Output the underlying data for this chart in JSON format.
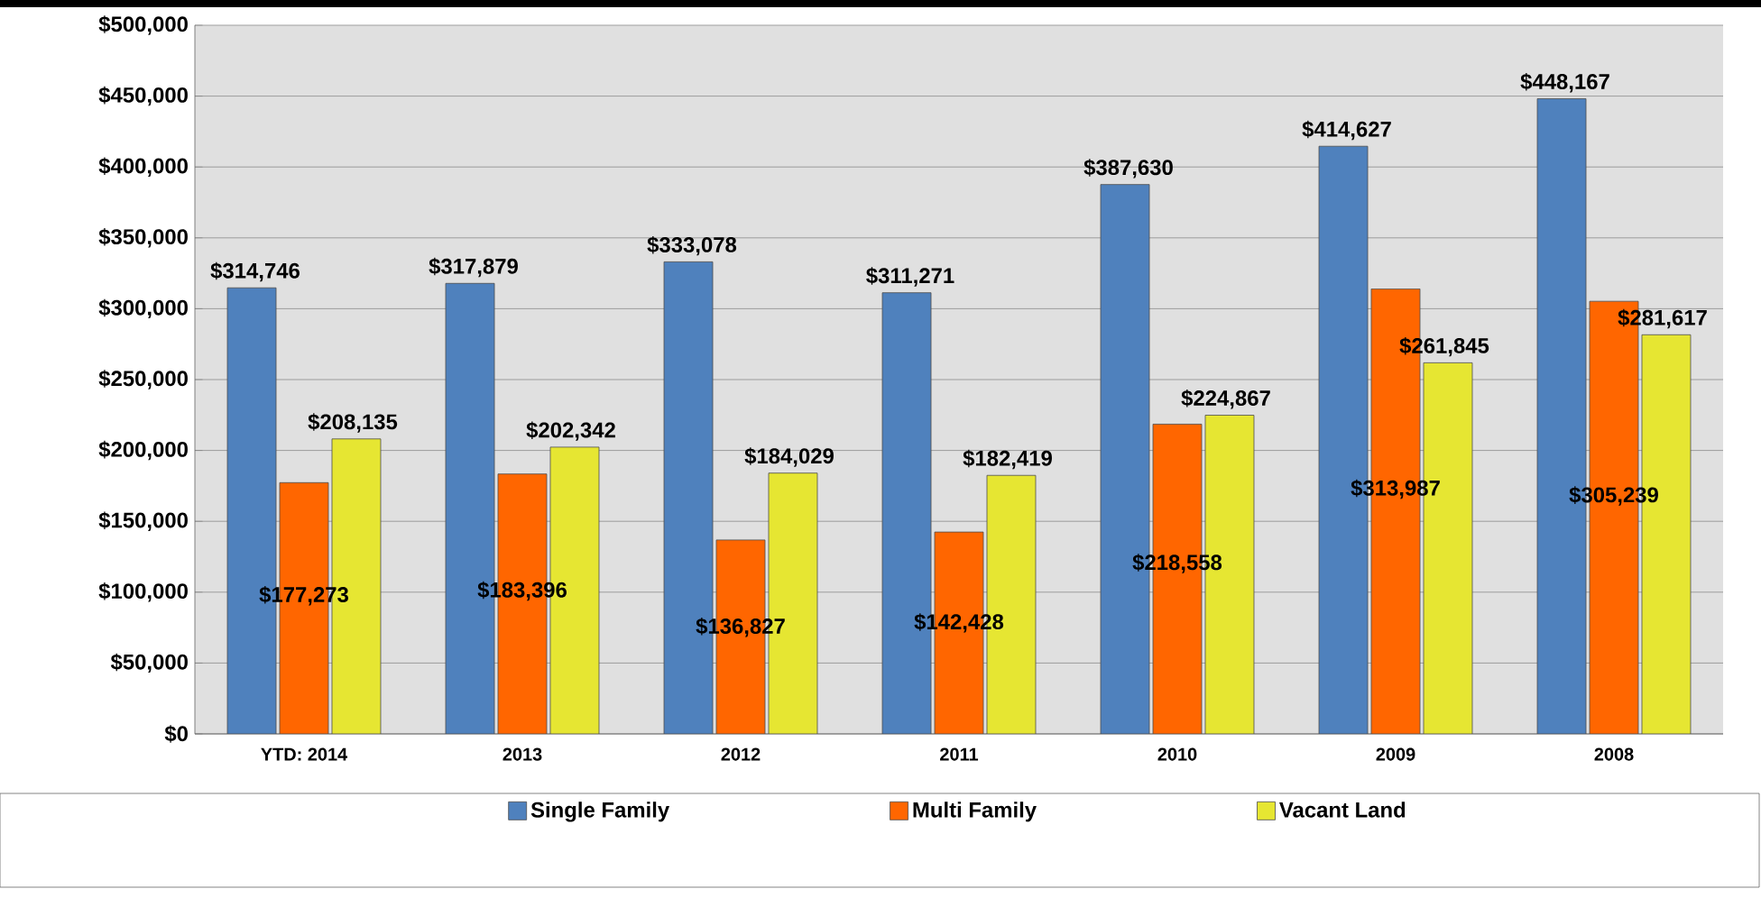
{
  "chart_data": {
    "type": "bar",
    "categories": [
      "YTD: 2014",
      "2013",
      "2012",
      "2011",
      "2010",
      "2009",
      "2008"
    ],
    "series": [
      {
        "name": "Single Family",
        "color": "#4f81bd",
        "values": [
          314746,
          317879,
          333078,
          311271,
          387630,
          414627,
          448167
        ],
        "value_labels": [
          "$314,746",
          "$317,879",
          "$333,078",
          "$311,271",
          "$387,630",
          "$414,627",
          "$448,167"
        ]
      },
      {
        "name": "Multi Family",
        "color": "#ff6600",
        "values": [
          177273,
          183396,
          136827,
          142428,
          218558,
          313987,
          305239
        ],
        "value_labels": [
          "$177,273",
          "$183,396",
          "$136,827",
          "$142,428",
          "$218,558",
          "$313,987",
          "$305,239"
        ]
      },
      {
        "name": "Vacant Land",
        "color": "#e6e632",
        "values": [
          208135,
          202342,
          184029,
          182419,
          224867,
          261845,
          281617
        ],
        "value_labels": [
          "$208,135",
          "$202,342",
          "$184,029",
          "$182,419",
          "$224,867",
          "$261,845",
          "$281,617"
        ]
      }
    ],
    "ylim": [
      0,
      500000
    ],
    "yticks": [
      {
        "value": 0,
        "label": "$0"
      },
      {
        "value": 50000,
        "label": "$50,000"
      },
      {
        "value": 100000,
        "label": "$100,000"
      },
      {
        "value": 150000,
        "label": "$150,000"
      },
      {
        "value": 200000,
        "label": "$200,000"
      },
      {
        "value": 250000,
        "label": "$250,000"
      },
      {
        "value": 300000,
        "label": "$300,000"
      },
      {
        "value": 350000,
        "label": "$350,000"
      },
      {
        "value": 400000,
        "label": "$400,000"
      },
      {
        "value": 450000,
        "label": "$450,000"
      },
      {
        "value": 500000,
        "label": "$500,000"
      }
    ],
    "grid": "y",
    "legend": "bottom"
  }
}
